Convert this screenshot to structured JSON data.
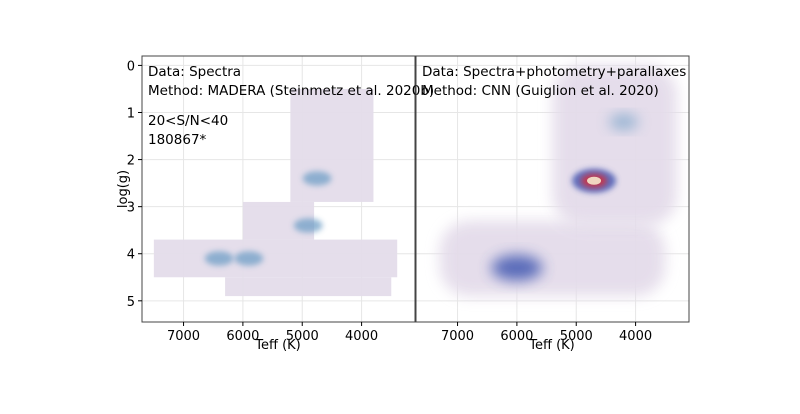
{
  "chart_data": [
    {
      "type": "heatmap",
      "panel": "left",
      "annotations": [
        "Data: Spectra",
        "Method: MADERA (Steinmetz et al. 2020b)",
        "20<S/N<40",
        "180867*"
      ],
      "xlabel": "Teff (K)",
      "ylabel": "log(g)",
      "xlim": [
        7700,
        3100
      ],
      "ylim": [
        5.45,
        -0.2
      ],
      "xticks": [
        7000,
        6000,
        5000,
        4000
      ],
      "yticks": [
        0,
        1,
        2,
        3,
        4,
        5
      ],
      "grid": true,
      "density_regions": [
        {
          "teff": [
            7500,
            3400
          ],
          "logg": [
            3.7,
            4.5
          ],
          "level": "low"
        },
        {
          "teff": [
            6300,
            3500
          ],
          "logg": [
            4.5,
            4.9
          ],
          "level": "low"
        },
        {
          "teff": [
            6000,
            4800
          ],
          "logg": [
            2.9,
            3.7
          ],
          "level": "low"
        },
        {
          "teff": [
            5200,
            3800
          ],
          "logg": [
            0.5,
            2.9
          ],
          "level": "low"
        }
      ],
      "hotspots": [
        {
          "teff": 4750,
          "logg": 2.4,
          "level": "medium"
        },
        {
          "teff": 4900,
          "logg": 3.4,
          "level": "medium"
        },
        {
          "teff": 5900,
          "logg": 4.1,
          "level": "medium"
        },
        {
          "teff": 6400,
          "logg": 4.1,
          "level": "medium"
        }
      ]
    },
    {
      "type": "heatmap",
      "panel": "right",
      "annotations": [
        "Data: Spectra+photometry+parallaxes",
        "Method: CNN (Guiglion et al. 2020)"
      ],
      "xlabel": "Teff (K)",
      "ylabel": "",
      "xlim": [
        7700,
        3100
      ],
      "ylim": [
        5.45,
        -0.2
      ],
      "xticks": [
        7000,
        6000,
        5000,
        4000
      ],
      "yticks": [],
      "grid": true,
      "density_regions": [
        {
          "teff": [
            7300,
            3500
          ],
          "logg": [
            3.3,
            4.9
          ],
          "level": "low"
        },
        {
          "teff": [
            5400,
            3300
          ],
          "logg": [
            0.0,
            3.4
          ],
          "level": "low"
        }
      ],
      "hotspots": [
        {
          "teff": 4700,
          "logg": 2.45,
          "level": "peak"
        },
        {
          "teff": 6000,
          "logg": 4.3,
          "level": "high"
        },
        {
          "teff": 4200,
          "logg": 1.2,
          "level": "medium"
        }
      ]
    }
  ]
}
